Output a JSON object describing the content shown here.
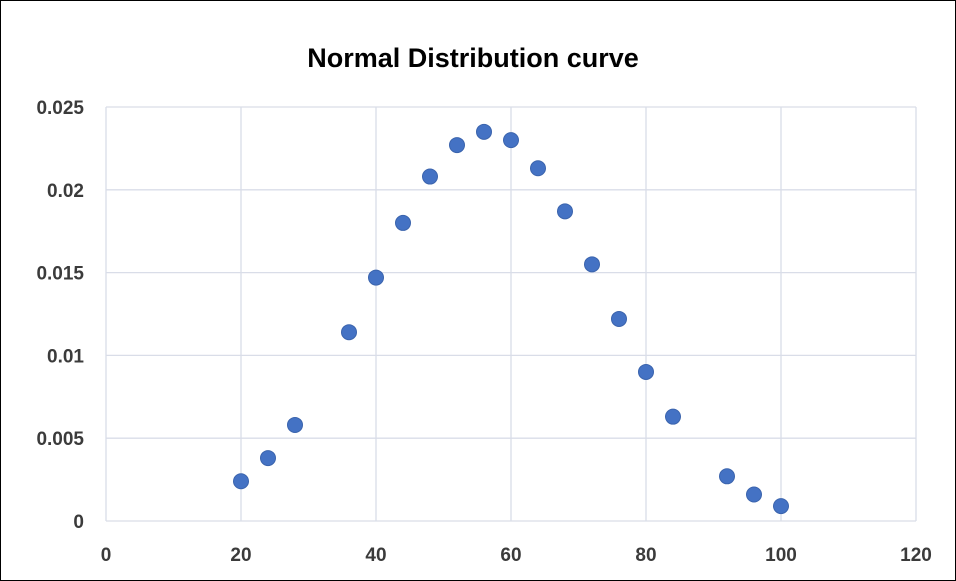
{
  "chart_data": {
    "type": "scatter",
    "title": "Normal Distribution curve",
    "xlabel": "",
    "ylabel": "",
    "xlim": [
      0,
      120
    ],
    "ylim": [
      0,
      0.025
    ],
    "x_ticks": [
      0,
      20,
      40,
      60,
      80,
      100,
      120
    ],
    "y_ticks": [
      0,
      0.005,
      0.01,
      0.015,
      0.02,
      0.025
    ],
    "x_tick_labels": [
      "0",
      "20",
      "40",
      "60",
      "80",
      "100",
      "120"
    ],
    "y_tick_labels": [
      "0",
      "0.005",
      "0.01",
      "0.015",
      "0.02",
      "0.025"
    ],
    "grid": true,
    "legend": "none",
    "marker_color": "#4472c4",
    "grid_color": "#d9dde8",
    "series": [
      {
        "points": [
          {
            "x": 20,
            "y": 0.0024
          },
          {
            "x": 24,
            "y": 0.0038
          },
          {
            "x": 28,
            "y": 0.0058
          },
          {
            "x": 36,
            "y": 0.0114
          },
          {
            "x": 40,
            "y": 0.0147
          },
          {
            "x": 44,
            "y": 0.018
          },
          {
            "x": 48,
            "y": 0.0208
          },
          {
            "x": 52,
            "y": 0.0227
          },
          {
            "x": 56,
            "y": 0.0235
          },
          {
            "x": 60,
            "y": 0.023
          },
          {
            "x": 64,
            "y": 0.0213
          },
          {
            "x": 68,
            "y": 0.0187
          },
          {
            "x": 72,
            "y": 0.0155
          },
          {
            "x": 76,
            "y": 0.0122
          },
          {
            "x": 80,
            "y": 0.009
          },
          {
            "x": 84,
            "y": 0.0063
          },
          {
            "x": 92,
            "y": 0.0027
          },
          {
            "x": 96,
            "y": 0.0016
          },
          {
            "x": 100,
            "y": 0.0009
          }
        ]
      }
    ]
  }
}
